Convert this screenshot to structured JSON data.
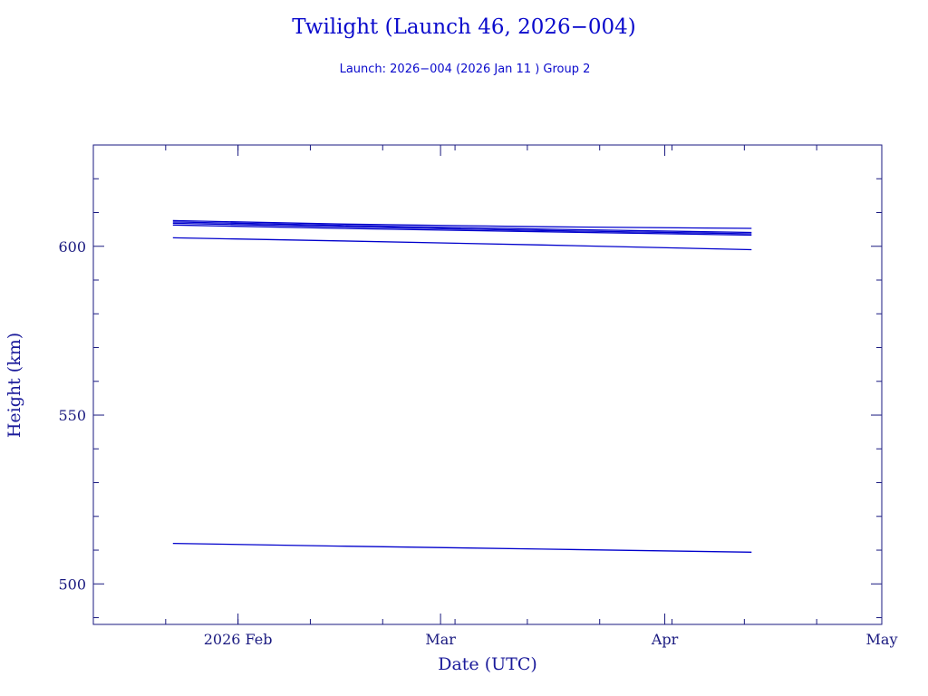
{
  "chart_data": {
    "type": "line",
    "title": "Twilight (Launch 46, 2026−004)",
    "subtitle": "Launch: 2026−004  (2026 Jan 11 )  Group 2",
    "xlabel": "Date (UTC)",
    "ylabel": "Height (km)",
    "xlim": [
      "2026-01-12",
      "2026-05-01"
    ],
    "ylim": [
      488,
      630
    ],
    "x_ticks": [
      {
        "date": "2026-02-01",
        "label": "2026 Feb"
      },
      {
        "date": "2026-03-01",
        "label": "Mar"
      },
      {
        "date": "2026-04-01",
        "label": "Apr"
      },
      {
        "date": "2026-05-01",
        "label": "May"
      }
    ],
    "y_ticks": [
      500,
      550,
      600
    ],
    "grid": false,
    "legend": "none",
    "line_color": "#0000cc",
    "series": [
      {
        "x": [
          "2026-01-23",
          "2026-02-15",
          "2026-03-15",
          "2026-04-13"
        ],
        "y": [
          607.6,
          606.6,
          605.8,
          605.3
        ]
      },
      {
        "x": [
          "2026-01-23",
          "2026-02-15",
          "2026-03-15",
          "2026-04-13"
        ],
        "y": [
          607.2,
          606.2,
          605.1,
          604.1
        ]
      },
      {
        "x": [
          "2026-01-23",
          "2026-02-15",
          "2026-03-15",
          "2026-04-13"
        ],
        "y": [
          606.8,
          605.8,
          604.7,
          603.7
        ]
      },
      {
        "x": [
          "2026-01-23",
          "2026-02-15",
          "2026-03-15",
          "2026-04-13"
        ],
        "y": [
          606.3,
          605.3,
          604.3,
          603.3
        ]
      },
      {
        "x": [
          "2026-01-23",
          "2026-02-15",
          "2026-03-15",
          "2026-04-13"
        ],
        "y": [
          602.5,
          601.6,
          600.4,
          599.0
        ]
      },
      {
        "x": [
          "2026-01-23",
          "2026-02-15",
          "2026-03-15",
          "2026-04-13"
        ],
        "y": [
          512.0,
          511.2,
          510.3,
          509.4
        ]
      }
    ]
  }
}
